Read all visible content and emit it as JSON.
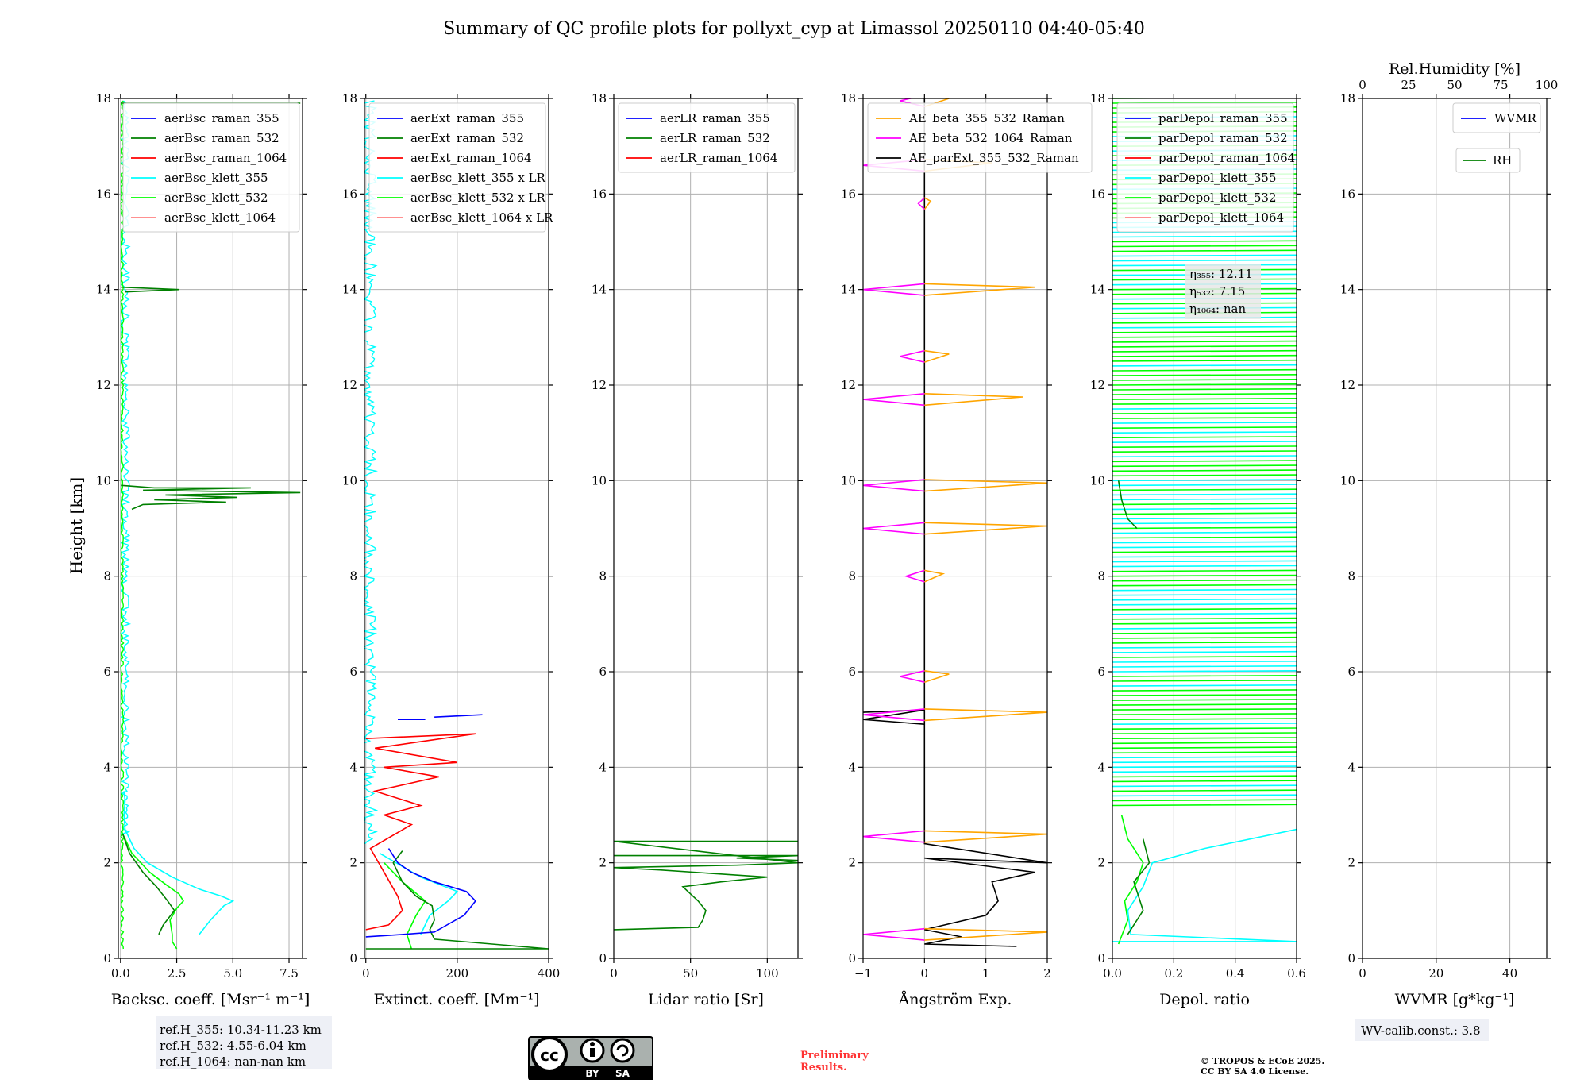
{
  "figure_title": "Summary of QC profile plots for pollyxt_cyp at Limassol 20250110 04:40-05:40",
  "y_axis_label": "Height [km]",
  "y_ticks": [
    "0",
    "2",
    "4",
    "6",
    "8",
    "10",
    "12",
    "14",
    "16",
    "18"
  ],
  "panels": [
    {
      "xlabel": "Backsc. coeff. [Msr⁻¹ m⁻¹]",
      "xlim": [
        -0.1,
        8.1
      ],
      "xticks": [
        0,
        2.5,
        5,
        7.5
      ],
      "xtick_labels": [
        "0.0",
        "2.5",
        "5.0",
        "7.5"
      ],
      "legend": [
        {
          "label": "aerBsc_raman_355",
          "color": "#0000ff"
        },
        {
          "label": "aerBsc_raman_532",
          "color": "#008000"
        },
        {
          "label": "aerBsc_raman_1064",
          "color": "#ff0000"
        },
        {
          "label": "aerBsc_klett_355",
          "color": "#00ffff"
        },
        {
          "label": "aerBsc_klett_532",
          "color": "#00ff00"
        },
        {
          "label": "aerBsc_klett_1064",
          "color": "#ff8080"
        }
      ]
    },
    {
      "xlabel": "Extinct. coeff. [Mm⁻¹]",
      "xlim": [
        -3,
        400
      ],
      "xticks": [
        0,
        200,
        400
      ],
      "xtick_labels": [
        "0",
        "200",
        "400"
      ],
      "legend": [
        {
          "label": "aerExt_raman_355",
          "color": "#0000ff"
        },
        {
          "label": "aerExt_raman_532",
          "color": "#008000"
        },
        {
          "label": "aerExt_raman_1064",
          "color": "#ff0000"
        },
        {
          "label": "aerBsc_klett_355 x LR",
          "color": "#00ffff"
        },
        {
          "label": "aerBsc_klett_532 x LR",
          "color": "#00ff00"
        },
        {
          "label": "aerBsc_klett_1064 x LR",
          "color": "#ff8080"
        }
      ]
    },
    {
      "xlabel": "Lidar ratio [Sr]",
      "xlim": [
        0,
        120
      ],
      "xticks": [
        0,
        50,
        100
      ],
      "xtick_labels": [
        "0",
        "50",
        "100"
      ],
      "legend": [
        {
          "label": "aerLR_raman_355",
          "color": "#0000ff"
        },
        {
          "label": "aerLR_raman_532",
          "color": "#008000"
        },
        {
          "label": "aerLR_raman_1064",
          "color": "#ff0000"
        }
      ]
    },
    {
      "xlabel": "Ångström Exp.",
      "xlim": [
        -1,
        2
      ],
      "xticks": [
        -1,
        0,
        1,
        2
      ],
      "xtick_labels": [
        "−1",
        "0",
        "1",
        "2"
      ],
      "legend": [
        {
          "label": "AE_beta_355_532_Raman",
          "color": "#ffa500"
        },
        {
          "label": "AE_beta_532_1064_Raman",
          "color": "#ff00ff"
        },
        {
          "label": "AE_parExt_355_532_Raman",
          "color": "#000000"
        }
      ]
    },
    {
      "xlabel": "Depol. ratio",
      "xlim": [
        0,
        0.6
      ],
      "xticks": [
        0,
        0.2,
        0.4,
        0.6
      ],
      "xtick_labels": [
        "0.0",
        "0.2",
        "0.4",
        "0.6"
      ],
      "legend": [
        {
          "label": "parDepol_raman_355",
          "color": "#0000ff"
        },
        {
          "label": "parDepol_raman_532",
          "color": "#008000"
        },
        {
          "label": "parDepol_raman_1064",
          "color": "#ff0000"
        },
        {
          "label": "parDepol_klett_355",
          "color": "#00ffff"
        },
        {
          "label": "parDepol_klett_532",
          "color": "#00ff00"
        },
        {
          "label": "parDepol_klett_1064",
          "color": "#ff8080"
        }
      ]
    },
    {
      "xlabel": "WVMR [g*kg⁻¹]",
      "xlim": [
        0,
        50
      ],
      "xticks": [
        0,
        20,
        40
      ],
      "xtick_labels": [
        "0",
        "20",
        "40"
      ],
      "top_label": "Rel.Humidity [%]",
      "top_ticks": [
        0,
        25,
        50,
        75,
        100
      ],
      "top_tick_labels": [
        "0",
        "25",
        "50",
        "75",
        "100"
      ],
      "legend": [
        {
          "label": "WVMR",
          "color": "#0000ff"
        }
      ],
      "legend2": [
        {
          "label": "RH",
          "color": "#008000"
        }
      ]
    }
  ],
  "chart_data": {
    "type": "line",
    "title": "Summary of QC profile plots for pollyxt_cyp at Limassol 20250110 04:40-05:40",
    "ylabel": "Height [km]",
    "ylim": [
      0,
      18
    ],
    "profiles": {
      "bsc_klett_355": [
        [
          0.15,
          3.5
        ],
        [
          0.2,
          3.3
        ],
        [
          0.15,
          3.0
        ],
        [
          0.2,
          2.7
        ],
        [
          0.6,
          2.3
        ],
        [
          1.2,
          2.0
        ],
        [
          2.3,
          1.7
        ],
        [
          3.5,
          1.45
        ],
        [
          4.5,
          1.3
        ],
        [
          5.0,
          1.2
        ],
        [
          4.6,
          1.1
        ],
        [
          4.0,
          0.8
        ],
        [
          3.5,
          0.5
        ]
      ],
      "bsc_klett_532": [
        [
          0.1,
          2.6
        ],
        [
          0.5,
          2.2
        ],
        [
          1.3,
          1.8
        ],
        [
          2.0,
          1.55
        ],
        [
          2.6,
          1.35
        ],
        [
          2.8,
          1.2
        ],
        [
          2.5,
          1.05
        ],
        [
          2.2,
          0.8
        ],
        [
          2.3,
          0.5
        ],
        [
          2.3,
          0.35
        ],
        [
          2.5,
          0.2
        ]
      ],
      "bsc_raman_532": [
        [
          0.1,
          2.6
        ],
        [
          0.4,
          2.2
        ],
        [
          1.0,
          1.8
        ],
        [
          1.6,
          1.5
        ],
        [
          2.1,
          1.2
        ],
        [
          2.4,
          1.0
        ],
        [
          1.9,
          0.7
        ],
        [
          1.7,
          0.5
        ]
      ],
      "bsc_raman_532_cloud": [
        [
          0.05,
          9.9
        ],
        [
          1.5,
          9.85
        ],
        [
          5.8,
          9.85
        ],
        [
          1.0,
          9.8
        ],
        [
          8.0,
          9.75
        ],
        [
          2.0,
          9.7
        ],
        [
          5.2,
          9.65
        ],
        [
          1.5,
          9.6
        ],
        [
          4.7,
          9.55
        ],
        [
          1.0,
          9.5
        ],
        [
          0.5,
          9.4
        ]
      ],
      "bsc_raman_532_14km": [
        [
          0.05,
          14.05
        ],
        [
          2.6,
          14.0
        ],
        [
          0.2,
          13.95
        ]
      ],
      "ext_raman_355": [
        [
          0,
          0.45
        ],
        [
          80,
          0.5
        ],
        [
          150,
          0.55
        ],
        [
          215,
          0.9
        ],
        [
          240,
          1.2
        ],
        [
          220,
          1.4
        ],
        [
          150,
          1.6
        ],
        [
          100,
          1.8
        ],
        [
          70,
          2.0
        ],
        [
          50,
          2.3
        ]
      ],
      "ext_raman_355_5km": [
        [
          150,
          5.05
        ],
        [
          255,
          5.1
        ]
      ],
      "ext_raman_532": [
        [
          0,
          0.2
        ],
        [
          400,
          0.2
        ],
        [
          150,
          0.4
        ],
        [
          140,
          0.6
        ],
        [
          150,
          0.8
        ],
        [
          145,
          1.1
        ],
        [
          110,
          1.3
        ],
        [
          80,
          1.6
        ],
        [
          60,
          2.0
        ],
        [
          80,
          2.25
        ]
      ],
      "ext_raman_1064": [
        [
          0,
          0.6
        ],
        [
          50,
          0.7
        ],
        [
          80,
          1.0
        ],
        [
          70,
          1.3
        ],
        [
          40,
          1.8
        ],
        [
          10,
          2.3
        ],
        [
          100,
          2.8
        ],
        [
          40,
          3.0
        ],
        [
          120,
          3.2
        ],
        [
          20,
          3.5
        ],
        [
          160,
          3.8
        ],
        [
          40,
          4.0
        ],
        [
          200,
          4.1
        ],
        [
          20,
          4.4
        ],
        [
          240,
          4.7
        ],
        [
          0,
          4.6
        ]
      ],
      "lr_raman_532": [
        [
          0,
          0.6
        ],
        [
          55,
          0.65
        ],
        [
          58,
          0.8
        ],
        [
          60,
          1.0
        ],
        [
          55,
          1.2
        ],
        [
          45,
          1.5
        ],
        [
          70,
          1.6
        ],
        [
          100,
          1.7
        ],
        [
          30,
          1.85
        ],
        [
          0,
          1.9
        ],
        [
          80,
          1.95
        ],
        [
          120,
          2.0
        ],
        [
          0,
          2.45
        ],
        [
          120,
          2.45
        ]
      ],
      "ae_parext": [
        [
          0,
          2.45
        ],
        [
          0.0,
          2.4
        ],
        [
          2,
          2.0
        ],
        [
          0,
          2.1
        ],
        [
          1.8,
          1.8
        ],
        [
          1.1,
          1.6
        ],
        [
          1.2,
          1.2
        ],
        [
          1.0,
          0.9
        ],
        [
          0,
          0.6
        ],
        [
          0.6,
          0.45
        ],
        [
          0,
          0.3
        ],
        [
          1.5,
          0.25
        ]
      ],
      "depol_klett_355": [
        [
          0,
          0.35
        ],
        [
          0.6,
          0.35
        ],
        [
          0.06,
          0.5
        ],
        [
          0.05,
          1.0
        ],
        [
          0.1,
          1.5
        ],
        [
          0.13,
          2.0
        ],
        [
          0.3,
          2.3
        ],
        [
          0.6,
          2.7
        ]
      ],
      "depol_klett_532": [
        [
          0.02,
          0.3
        ],
        [
          0.05,
          0.8
        ],
        [
          0.04,
          1.2
        ],
        [
          0.08,
          1.6
        ],
        [
          0.1,
          2.0
        ],
        [
          0.05,
          2.5
        ],
        [
          0.03,
          3.0
        ]
      ],
      "depol_raman_532": [
        [
          0.05,
          0.5
        ],
        [
          0.1,
          1.0
        ],
        [
          0.07,
          1.6
        ],
        [
          0.12,
          2.0
        ],
        [
          0.1,
          2.5
        ]
      ]
    }
  },
  "bsc_legend_note": "",
  "ratios": {
    "eta_355": "η₃₅₅: 12.11",
    "eta_532": "η₅₃₂: 7.15",
    "eta_1064": "η₁₀₆₄: nan"
  },
  "ref_heights": {
    "h355": "ref.H_355: 10.34-11.23 km",
    "h532": "ref.H_532: 4.55-6.04 km",
    "h1064": "ref.H_1064: nan-nan km"
  },
  "wv_calib": "WV-calib.const.: 3.8",
  "license_badge": {
    "cc": "cc",
    "by": "BY",
    "sa": "SA"
  },
  "preliminary": [
    "Preliminary",
    "Results."
  ],
  "copyright": [
    "© TROPOS & ECoE 2025.",
    "CC BY SA 4.0 License."
  ],
  "colors": {
    "blue": "#0000ff",
    "green": "#008000",
    "red": "#ff0000",
    "cyan": "#00ffff",
    "lime": "#00ff00",
    "pink": "#ff8080",
    "orange": "#ffa500",
    "magenta": "#ff00ff",
    "black": "#000000",
    "grid": "#b0b0b0",
    "preliminary": "#ff3333"
  }
}
